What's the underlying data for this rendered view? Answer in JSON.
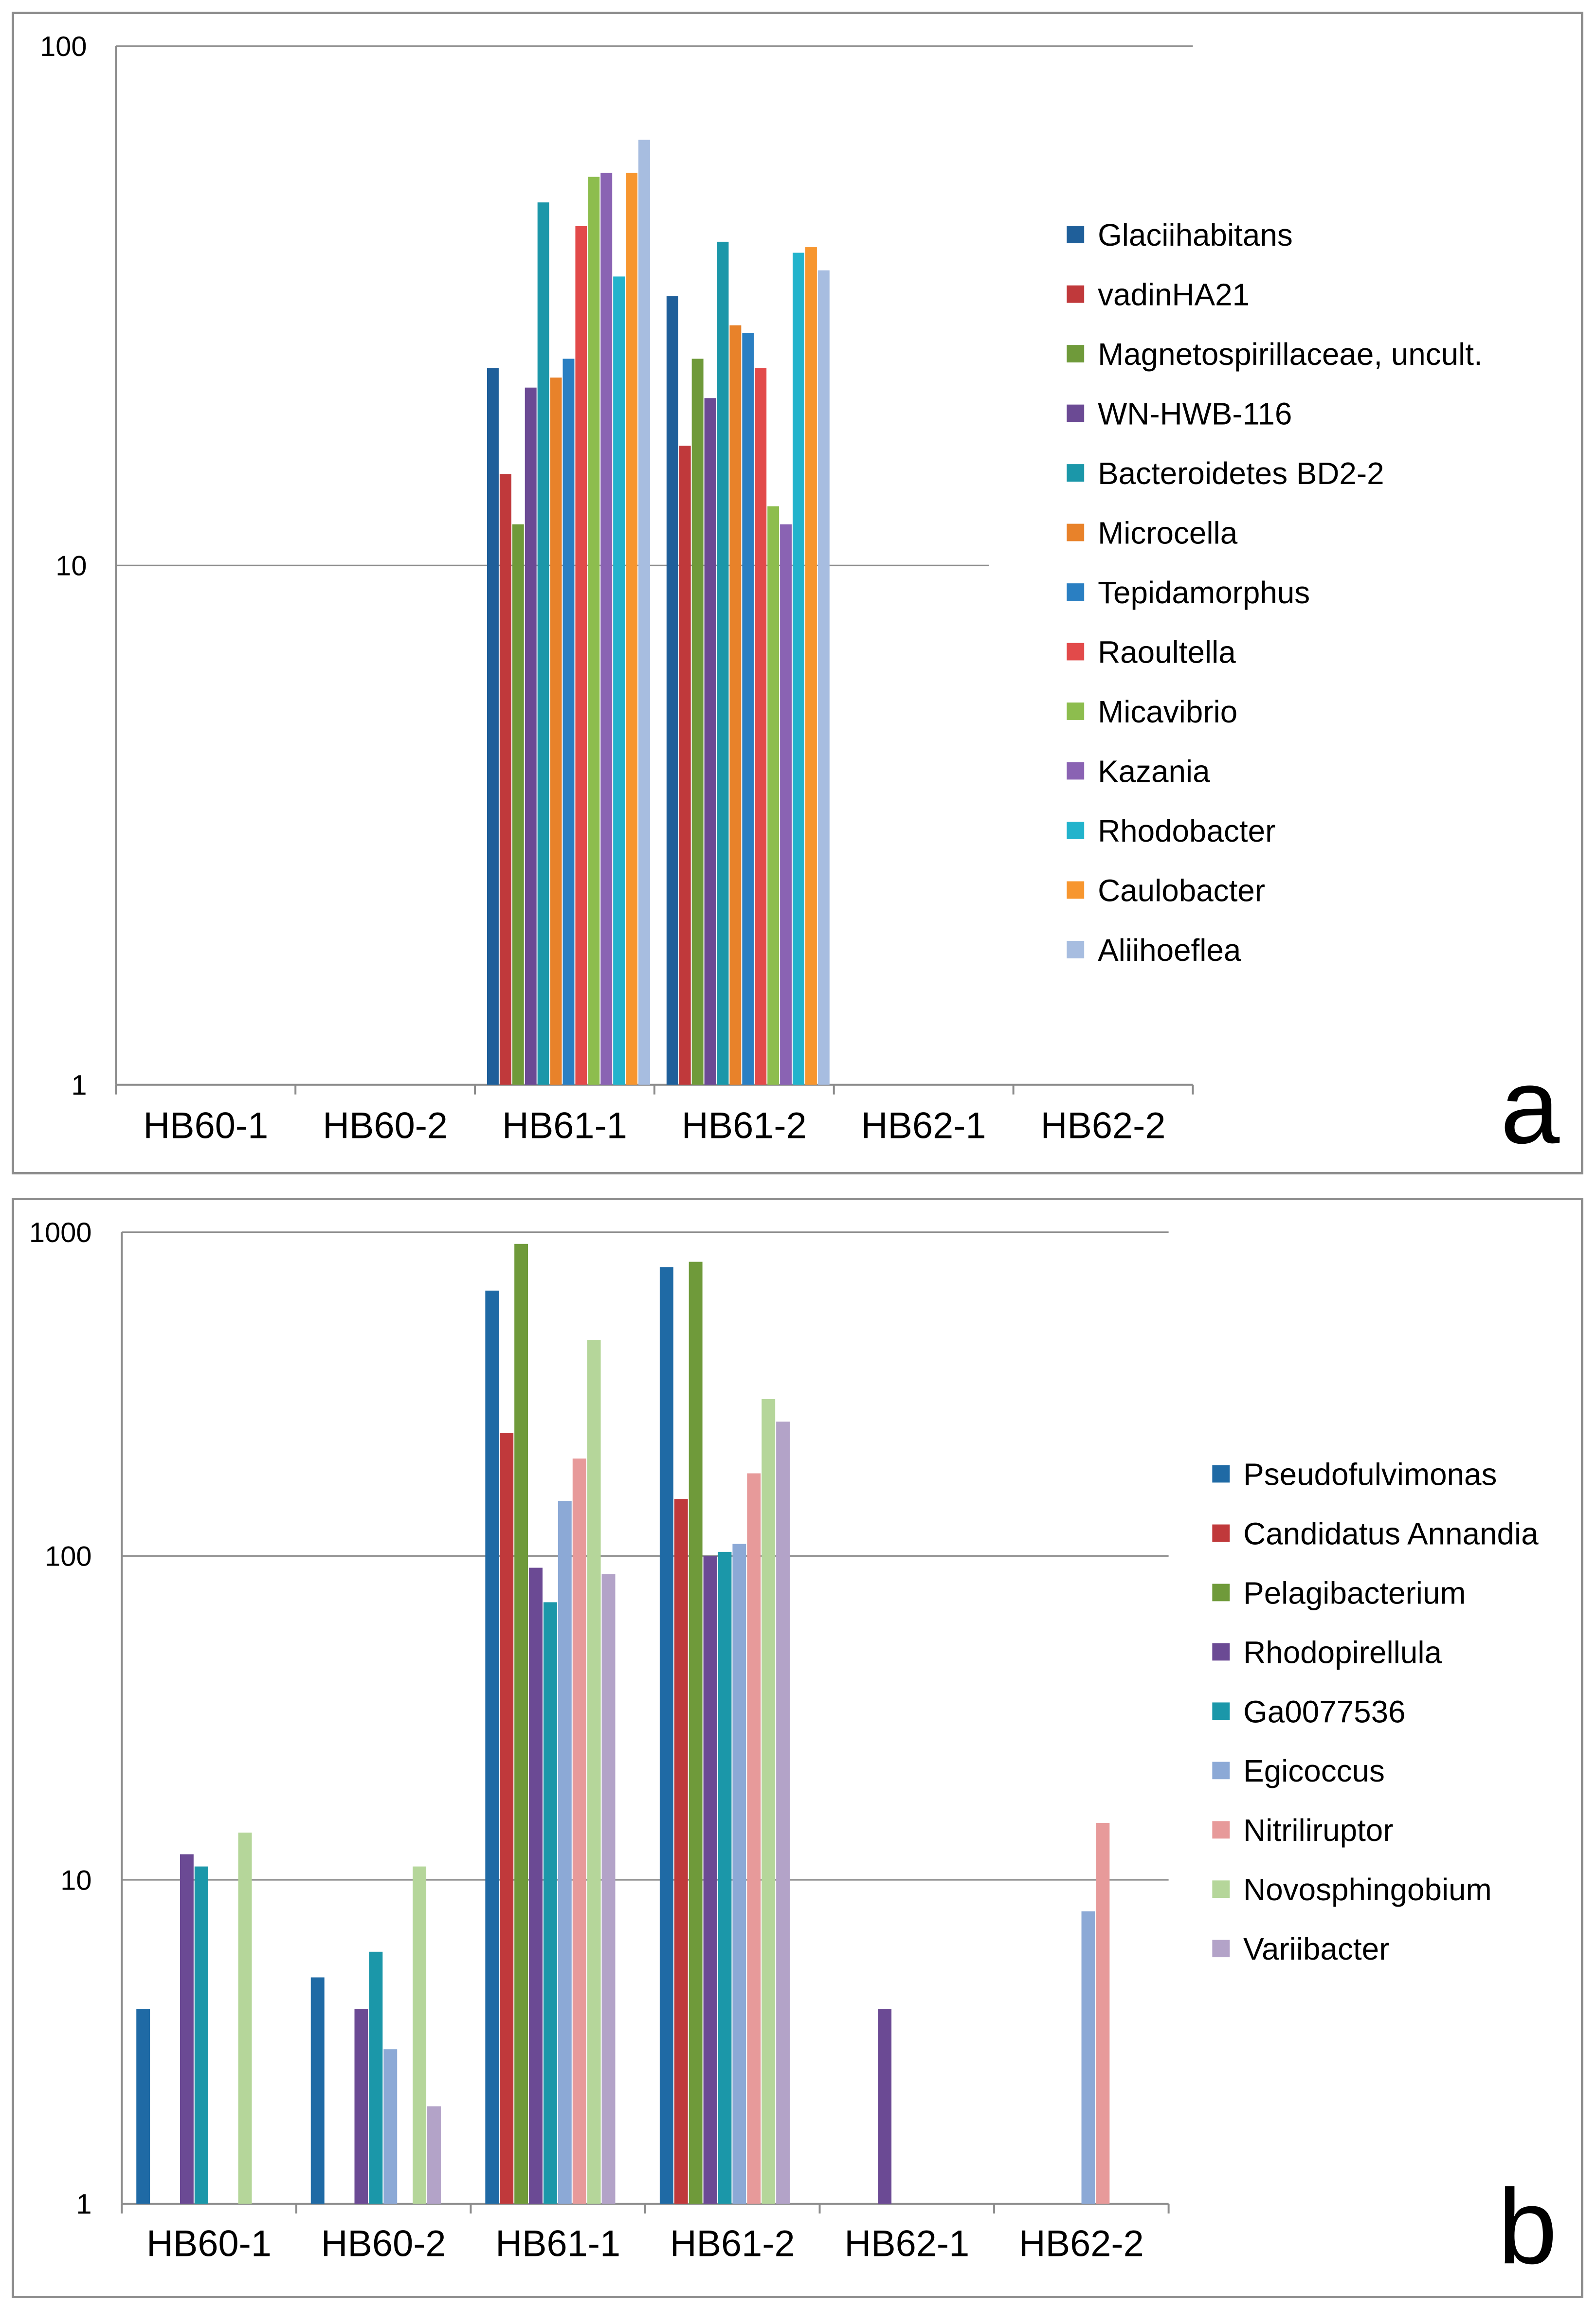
{
  "chart_data": [
    {
      "type": "bar",
      "scale": "log",
      "panel_label": "a",
      "categories": [
        "HB60-1",
        "HB60-2",
        "HB61-1",
        "HB61-2",
        "HB62-1",
        "HB62-2"
      ],
      "ylim": [
        1,
        100
      ],
      "yticks": [
        "1",
        "10",
        "100"
      ],
      "legend_position": "right",
      "series": [
        {
          "name": "Glaciihabitans",
          "color": "#1f5f9a",
          "values": [
            0,
            0,
            24,
            33,
            0,
            0
          ]
        },
        {
          "name": "vadinHA21",
          "color": "#c0393b",
          "values": [
            0,
            0,
            15,
            17,
            0,
            0
          ]
        },
        {
          "name": "Magnetospirillaceae, uncult.",
          "color": "#6f9a3a",
          "values": [
            0,
            0,
            12,
            25,
            0,
            0
          ]
        },
        {
          "name": "WN-HWB-116",
          "color": "#6b4a94",
          "values": [
            0,
            0,
            22,
            21,
            0,
            0
          ]
        },
        {
          "name": "Bacteroidetes BD2-2",
          "color": "#1b97a9",
          "values": [
            0,
            0,
            50,
            42,
            0,
            0
          ]
        },
        {
          "name": "Microcella",
          "color": "#e8822a",
          "values": [
            0,
            0,
            23,
            29,
            0,
            0
          ]
        },
        {
          "name": "Tepidamorphus",
          "color": "#2a7fc2",
          "values": [
            0,
            0,
            25,
            28,
            0,
            0
          ]
        },
        {
          "name": "Raoultella",
          "color": "#e24a4a",
          "values": [
            0,
            0,
            45,
            24,
            0,
            0
          ]
        },
        {
          "name": "Micavibrio",
          "color": "#8dbd4e",
          "values": [
            0,
            0,
            56,
            13,
            0,
            0
          ]
        },
        {
          "name": "Kazania",
          "color": "#8a63b3",
          "values": [
            0,
            0,
            57,
            12,
            0,
            0
          ]
        },
        {
          "name": "Rhodobacter",
          "color": "#22b3cc",
          "values": [
            0,
            0,
            36,
            40,
            0,
            0
          ]
        },
        {
          "name": "Caulobacter",
          "color": "#f7962f",
          "values": [
            0,
            0,
            57,
            41,
            0,
            0
          ]
        },
        {
          "name": "Aliihoeflea",
          "color": "#a7bde0",
          "values": [
            0,
            0,
            66,
            37,
            0,
            0
          ]
        }
      ]
    },
    {
      "type": "bar",
      "scale": "log",
      "panel_label": "b",
      "categories": [
        "HB60-1",
        "HB60-2",
        "HB61-1",
        "HB61-2",
        "HB62-1",
        "HB62-2"
      ],
      "ylim": [
        1,
        1000
      ],
      "yticks": [
        "1",
        "10",
        "100",
        "1000"
      ],
      "legend_position": "right",
      "series": [
        {
          "name": "Pseudofulvimonas",
          "color": "#1f6aa5",
          "values": [
            4,
            5,
            660,
            780,
            0,
            0
          ]
        },
        {
          "name": "Candidatus Annandia",
          "color": "#c0393b",
          "values": [
            0,
            0,
            240,
            150,
            0,
            0
          ]
        },
        {
          "name": "Pelagibacterium",
          "color": "#6f9a3a",
          "values": [
            0,
            0,
            920,
            810,
            0,
            0
          ]
        },
        {
          "name": "Rhodopirellula",
          "color": "#6b4a94",
          "values": [
            12,
            4,
            92,
            100,
            4,
            0
          ]
        },
        {
          "name": "Ga0077536",
          "color": "#1b97a9",
          "values": [
            11,
            6,
            72,
            103,
            0,
            0
          ]
        },
        {
          "name": "Egicoccus",
          "color": "#8ca9d6",
          "values": [
            0,
            3,
            148,
            109,
            0,
            8
          ]
        },
        {
          "name": "Nitriliruptor",
          "color": "#e79a9a",
          "values": [
            0,
            0,
            200,
            180,
            0,
            15
          ]
        },
        {
          "name": "Novosphingobium",
          "color": "#b5d69a",
          "values": [
            14,
            11,
            465,
            305,
            0,
            0
          ]
        },
        {
          "name": "Variibacter",
          "color": "#b3a3c8",
          "values": [
            0,
            2,
            88,
            260,
            0,
            0
          ]
        }
      ]
    }
  ]
}
